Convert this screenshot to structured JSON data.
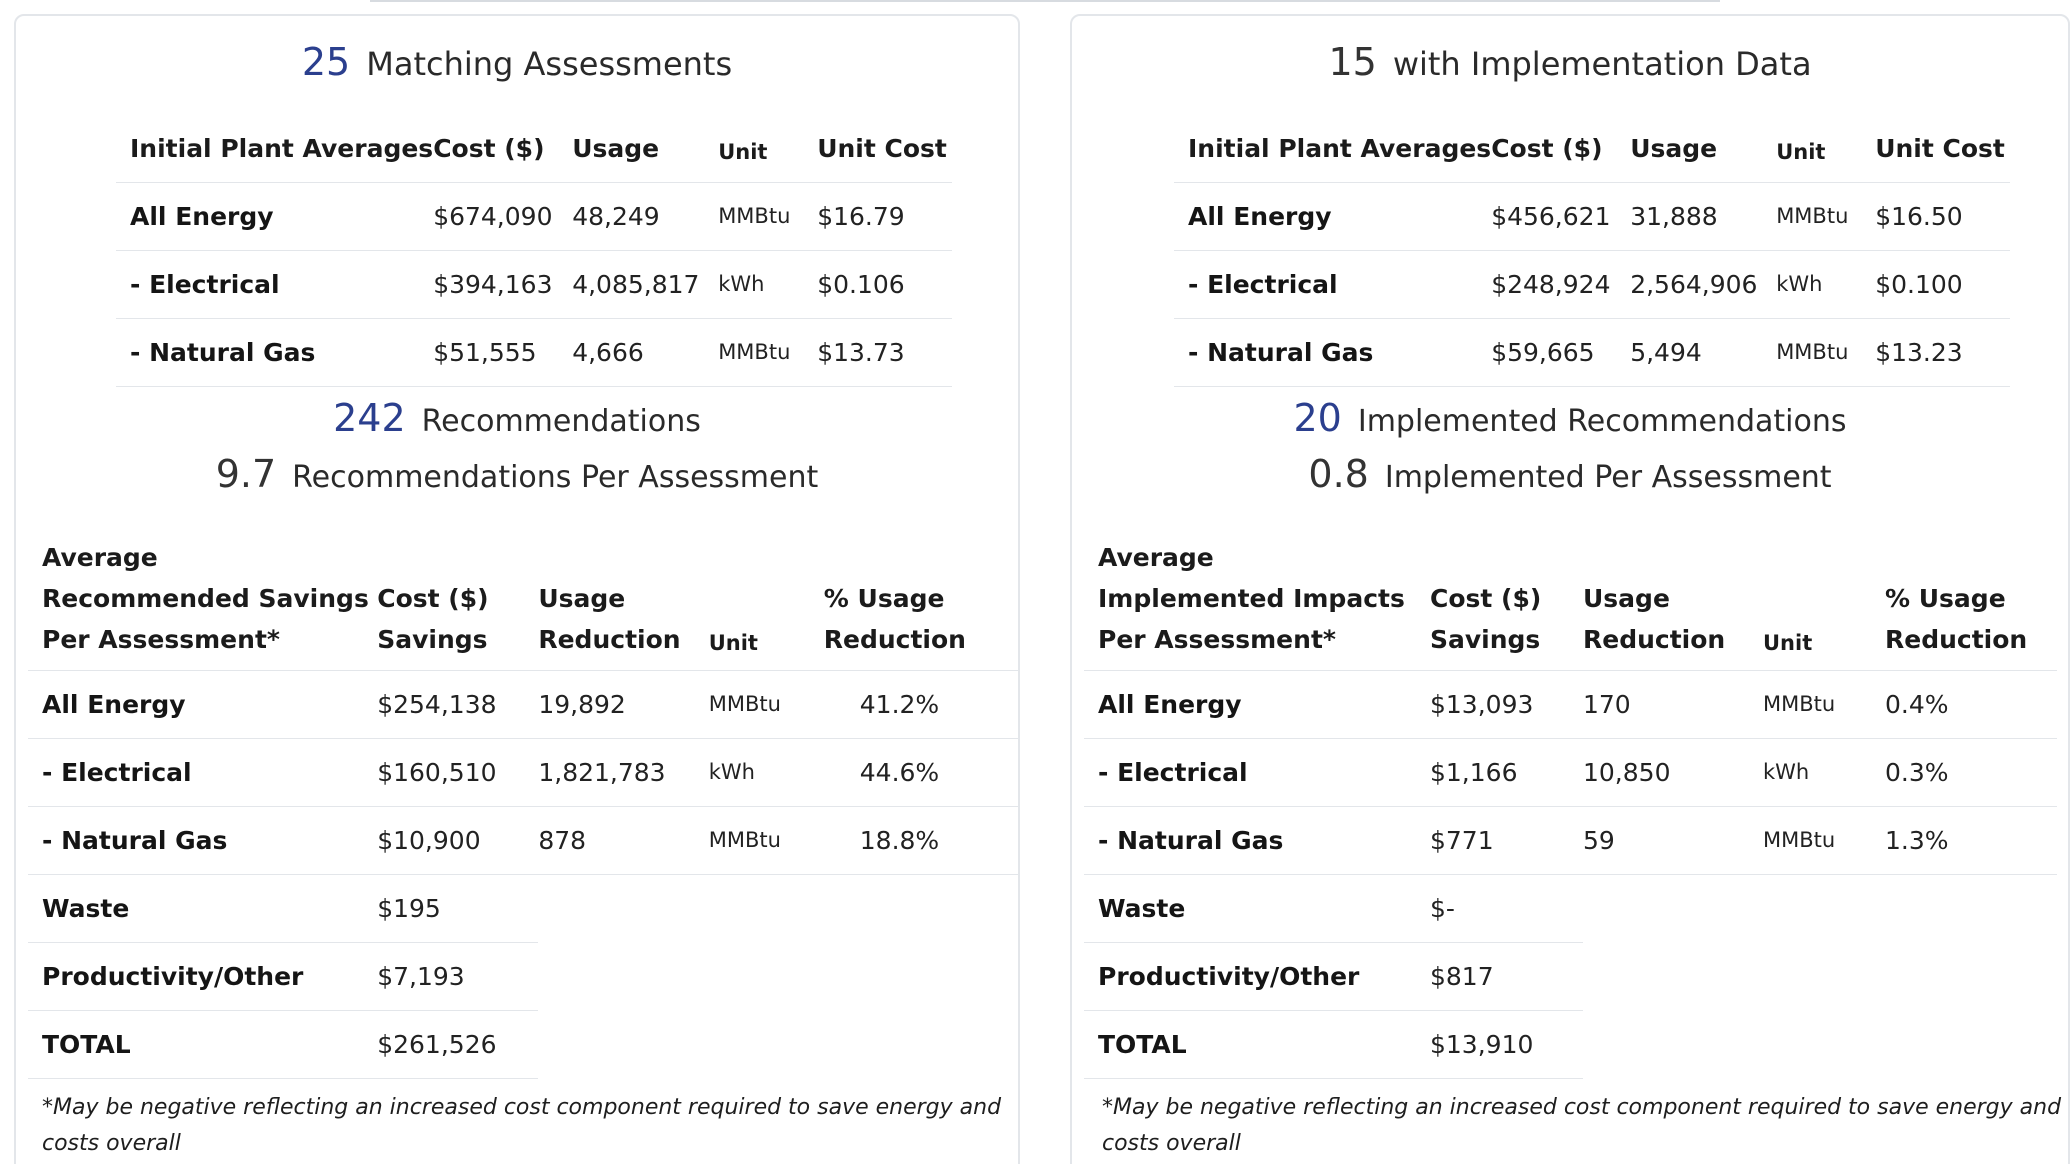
{
  "left": {
    "headline1": {
      "num": "25",
      "label": "Matching Assessments"
    },
    "avg_table": {
      "headers": [
        "Initial Plant Averages",
        "Cost ($)",
        "Usage",
        "Unit",
        "Unit Cost"
      ],
      "rows": [
        [
          "All Energy",
          "$674,090",
          "48,249",
          "MMBtu",
          "$16.79"
        ],
        [
          "- Electrical",
          "$394,163",
          "4,085,817",
          "kWh",
          "$0.106"
        ],
        [
          "- Natural Gas",
          "$51,555",
          "4,666",
          "MMBtu",
          "$13.73"
        ]
      ]
    },
    "headline2": {
      "num": "242",
      "label": "Recommendations"
    },
    "headline3": {
      "num": "9.7",
      "label": "Recommendations Per Assessment"
    },
    "sav_table": {
      "headers": {
        "c0": [
          "Average",
          "Recommended Savings",
          "Per Assessment*"
        ],
        "c1": [
          "Cost ($)",
          "Savings"
        ],
        "c2": [
          "Usage",
          "Reduction"
        ],
        "c3": "Unit",
        "c4": [
          "% Usage",
          "Reduction"
        ]
      },
      "rows": [
        [
          "All Energy",
          "$254,138",
          "19,892",
          "MMBtu",
          "41.2%"
        ],
        [
          "- Electrical",
          "$160,510",
          "1,821,783",
          "kWh",
          "44.6%"
        ],
        [
          "- Natural Gas",
          "$10,900",
          "878",
          "MMBtu",
          "18.8%"
        ],
        [
          "Waste",
          "$195"
        ],
        [
          "Productivity/Other",
          "$7,193"
        ],
        [
          "TOTAL",
          "$261,526"
        ]
      ]
    },
    "footnote": "*May be negative reflecting an increased cost component required to save energy and costs overall"
  },
  "right": {
    "headline1": {
      "num": "15",
      "label": "with Implementation Data"
    },
    "avg_table": {
      "headers": [
        "Initial Plant Averages",
        "Cost ($)",
        "Usage",
        "Unit",
        "Unit Cost"
      ],
      "rows": [
        [
          "All Energy",
          "$456,621",
          "31,888",
          "MMBtu",
          "$16.50"
        ],
        [
          "- Electrical",
          "$248,924",
          "2,564,906",
          "kWh",
          "$0.100"
        ],
        [
          "- Natural Gas",
          "$59,665",
          "5,494",
          "MMBtu",
          "$13.23"
        ]
      ]
    },
    "headline2": {
      "num": "20",
      "label": "Implemented Recommendations"
    },
    "headline3": {
      "num": "0.8",
      "label": "Implemented Per Assessment"
    },
    "sav_table": {
      "headers": {
        "c0": [
          "Average",
          "Implemented Impacts",
          "Per Assessment*"
        ],
        "c1": [
          "Cost ($)",
          "Savings"
        ],
        "c2": [
          "Usage",
          "Reduction"
        ],
        "c3": "Unit",
        "c4": [
          "% Usage",
          "Reduction"
        ]
      },
      "rows": [
        [
          "All Energy",
          "$13,093",
          "170",
          "MMBtu",
          "0.4%"
        ],
        [
          "- Electrical",
          "$1,166",
          "10,850",
          "kWh",
          "0.3%"
        ],
        [
          "- Natural Gas",
          "$771",
          "59",
          "MMBtu",
          "1.3%"
        ],
        [
          "Waste",
          "$-"
        ],
        [
          "Productivity/Other",
          "$817"
        ],
        [
          "TOTAL",
          "$13,910"
        ]
      ]
    },
    "footnote": "*May be negative reflecting an increased cost component required to save energy and costs overall"
  },
  "colors": {
    "accent_number": "#2b3f8e",
    "border": "#e3e6ea",
    "text": "#1f1f1f"
  }
}
